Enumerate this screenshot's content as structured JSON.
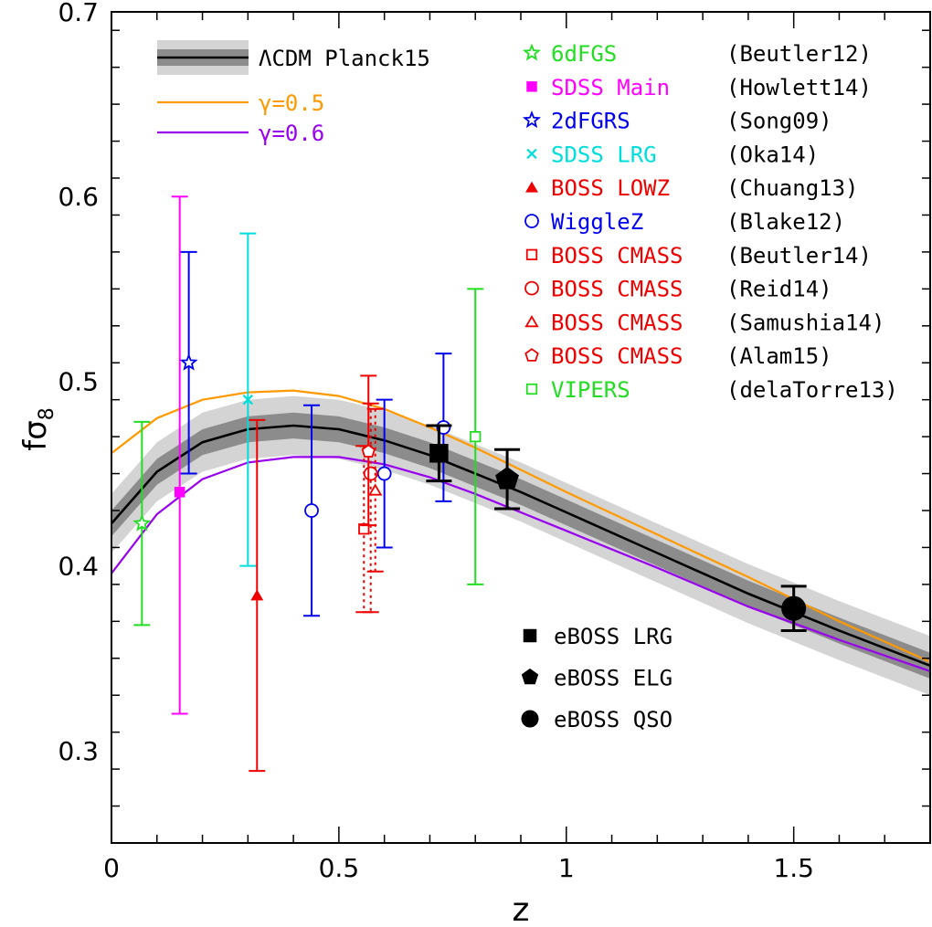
{
  "chart_data": {
    "type": "scatter",
    "xlabel": "z",
    "ylabel": "fσ",
    "ylabel_sub": "8",
    "xlim": [
      0,
      1.8
    ],
    "ylim": [
      0.25,
      0.7
    ],
    "x_ticks": [
      0,
      0.5,
      1,
      1.5
    ],
    "x_tick_labels": [
      "0",
      "0.5",
      "1",
      "1.5"
    ],
    "y_ticks": [
      0.3,
      0.4,
      0.5,
      0.6,
      0.7
    ],
    "y_tick_labels": [
      "0.3",
      "0.4",
      "0.5",
      "0.6",
      "0.7"
    ],
    "x_minor_step": 0.1,
    "y_minor_step": 0.02,
    "model_curves": [
      {
        "name": "ΛCDM Planck15",
        "color": "#000000",
        "x": [
          0,
          0.1,
          0.2,
          0.3,
          0.4,
          0.5,
          0.6,
          0.7,
          0.8,
          0.9,
          1.0,
          1.2,
          1.4,
          1.6,
          1.8
        ],
        "y": [
          0.423,
          0.451,
          0.467,
          0.474,
          0.476,
          0.474,
          0.468,
          0.46,
          0.45,
          0.44,
          0.429,
          0.407,
          0.385,
          0.365,
          0.346
        ],
        "band_inner": 0.007,
        "band_outer": 0.016
      },
      {
        "name": "γ=0.5",
        "color": "#ff9900",
        "x": [
          0,
          0.1,
          0.2,
          0.3,
          0.4,
          0.5,
          0.6,
          0.7,
          0.8,
          0.9,
          1.0,
          1.2,
          1.4,
          1.6,
          1.8
        ],
        "y": [
          0.461,
          0.48,
          0.49,
          0.494,
          0.495,
          0.492,
          0.485,
          0.475,
          0.464,
          0.452,
          0.44,
          0.417,
          0.394,
          0.37,
          0.348
        ]
      },
      {
        "name": "γ=0.6",
        "color": "#9900ee",
        "x": [
          0,
          0.1,
          0.2,
          0.3,
          0.4,
          0.5,
          0.6,
          0.7,
          0.8,
          0.9,
          1.0,
          1.2,
          1.4,
          1.6,
          1.8
        ],
        "y": [
          0.396,
          0.428,
          0.447,
          0.456,
          0.459,
          0.459,
          0.455,
          0.448,
          0.439,
          0.429,
          0.419,
          0.399,
          0.378,
          0.36,
          0.343
        ]
      }
    ],
    "series": [
      {
        "name": "6dFGS",
        "ref": "(Beutler12)",
        "color": "#22dd22",
        "marker": "star-open",
        "x": [
          0.067
        ],
        "y": [
          0.423
        ],
        "err": [
          0.055
        ],
        "dashed": false
      },
      {
        "name": "SDSS Main",
        "ref": "(Howlett14)",
        "color": "#ff00ff",
        "marker": "square-filled",
        "x": [
          0.15
        ],
        "y": [
          0.44
        ],
        "err_low": [
          0.12
        ],
        "err_high": [
          0.16
        ],
        "dashed": false
      },
      {
        "name": "2dFGRS",
        "ref": "(Song09)",
        "color": "#0000ee",
        "marker": "star-open",
        "x": [
          0.17
        ],
        "y": [
          0.51
        ],
        "err": [
          0.06
        ],
        "dashed": false
      },
      {
        "name": "SDSS LRG",
        "ref": "(Oka14)",
        "color": "#00dddd",
        "marker": "x",
        "x": [
          0.3
        ],
        "y": [
          0.49
        ],
        "err": [
          0.09
        ],
        "dashed": false
      },
      {
        "name": "BOSS LOWZ",
        "ref": "(Chuang13)",
        "color": "#ee0000",
        "marker": "triangle-filled",
        "x": [
          0.32
        ],
        "y": [
          0.384
        ],
        "err": [
          0.095
        ],
        "dashed": false
      },
      {
        "name": "WiggleZ",
        "ref": "(Blake12)",
        "color": "#0000ee",
        "marker": "circle-open",
        "x": [
          0.44,
          0.6,
          0.73
        ],
        "y": [
          0.43,
          0.45,
          0.475
        ],
        "err": [
          0.057,
          0.04,
          0.04
        ],
        "dashed": false
      },
      {
        "name": "BOSS CMASS",
        "ref": "(Beutler14)",
        "color": "#ee0000",
        "marker": "square-open",
        "x": [
          0.555
        ],
        "y": [
          0.42
        ],
        "err_low": [
          0.045
        ],
        "err_high": [
          0.045
        ],
        "dashed": true
      },
      {
        "name": "BOSS CMASS",
        "ref": "(Reid14)",
        "color": "#ee0000",
        "marker": "circle-open",
        "x": [
          0.57
        ],
        "y": [
          0.45
        ],
        "err_low": [
          0.075
        ],
        "err_high": [
          0.038
        ],
        "dashed": true
      },
      {
        "name": "BOSS CMASS",
        "ref": "(Samushia14)",
        "color": "#ee0000",
        "marker": "triangle-open",
        "x": [
          0.58
        ],
        "y": [
          0.441
        ],
        "err_low": [
          0.044
        ],
        "err_high": [
          0.044
        ],
        "dashed": true
      },
      {
        "name": "BOSS CMASS",
        "ref": "(Alam15)",
        "color": "#ee0000",
        "marker": "pentagon-open",
        "x": [
          0.565
        ],
        "y": [
          0.462
        ],
        "err_low": [
          0.04
        ],
        "err_high": [
          0.041
        ],
        "dashed": false
      },
      {
        "name": "VIPERS",
        "ref": "(delaTorre13)",
        "color": "#22dd22",
        "marker": "square-open",
        "x": [
          0.8
        ],
        "y": [
          0.47
        ],
        "err": [
          0.08
        ],
        "dashed": false
      }
    ],
    "forecasts": [
      {
        "name": "eBOSS LRG",
        "color": "#000000",
        "marker": "square-filled",
        "x": 0.72,
        "y": 0.461,
        "err": 0.015
      },
      {
        "name": "eBOSS ELG",
        "color": "#000000",
        "marker": "pentagon-filled",
        "x": 0.87,
        "y": 0.447,
        "err": 0.016
      },
      {
        "name": "eBOSS QSO",
        "color": "#000000",
        "marker": "circle-filled",
        "x": 1.5,
        "y": 0.377,
        "err": 0.012
      }
    ]
  }
}
